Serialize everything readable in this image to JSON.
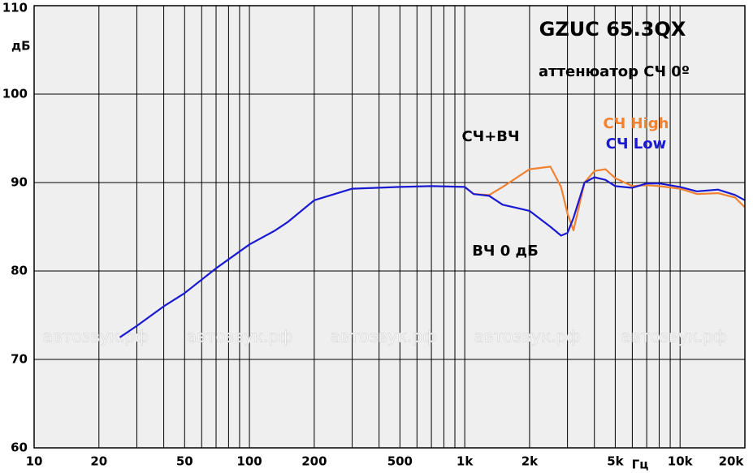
{
  "chart_data": {
    "type": "line",
    "title": "GZUC 65.3QX",
    "subtitle": "аттенюатор СЧ 0º",
    "y_label": "дБ",
    "x_label": "Гц",
    "annotations": [
      "СЧ+ВЧ",
      "ВЧ 0 дБ"
    ],
    "watermark": "автозвук.рф",
    "log_x": true,
    "grid": true,
    "xlim": [
      10,
      20000
    ],
    "ylim": [
      60,
      110
    ],
    "xticks": [
      10,
      20,
      50,
      100,
      200,
      500,
      {
        "value": 1000,
        "label": "1k"
      },
      {
        "value": 2000,
        "label": "2k"
      },
      {
        "value": 5000,
        "label": "5k"
      },
      {
        "value": 10000,
        "label": "10k"
      },
      {
        "value": 20000,
        "label": "20k"
      }
    ],
    "xgrid": [
      30,
      40,
      60,
      70,
      80,
      90,
      300,
      400,
      600,
      700,
      800,
      900,
      3000,
      4000,
      6000,
      7000,
      8000,
      9000
    ],
    "yticks": [
      60,
      70,
      80,
      90,
      100,
      110
    ],
    "x": [
      25,
      30,
      40,
      50,
      70,
      100,
      130,
      150,
      200,
      300,
      500,
      700,
      1000,
      1100,
      1300,
      1500,
      2000,
      2500,
      2800,
      3000,
      3200,
      3600,
      4000,
      4500,
      5000,
      6000,
      7000,
      8000,
      10000,
      12000,
      15000,
      18000,
      20000
    ],
    "series": [
      {
        "name": "СЧ Low",
        "color": "#1a1ad2",
        "values": [
          72.5,
          73.8,
          76.0,
          77.5,
          80.3,
          83.0,
          84.5,
          85.5,
          88.0,
          89.3,
          89.5,
          89.6,
          89.5,
          88.7,
          88.5,
          87.5,
          86.8,
          85.0,
          84.0,
          84.3,
          86.0,
          90.0,
          90.6,
          90.3,
          89.6,
          89.4,
          89.9,
          89.9,
          89.5,
          89.0,
          89.2,
          88.6,
          88.0
        ]
      },
      {
        "name": "СЧ High",
        "color": "#f08232",
        "values": [
          null,
          null,
          null,
          null,
          null,
          null,
          null,
          null,
          null,
          null,
          null,
          null,
          89.5,
          88.7,
          88.6,
          89.5,
          91.5,
          91.8,
          89.5,
          86.5,
          84.6,
          90.0,
          91.3,
          91.5,
          90.5,
          89.6,
          89.7,
          89.6,
          89.3,
          88.7,
          88.8,
          88.3,
          87.2
        ]
      }
    ]
  }
}
